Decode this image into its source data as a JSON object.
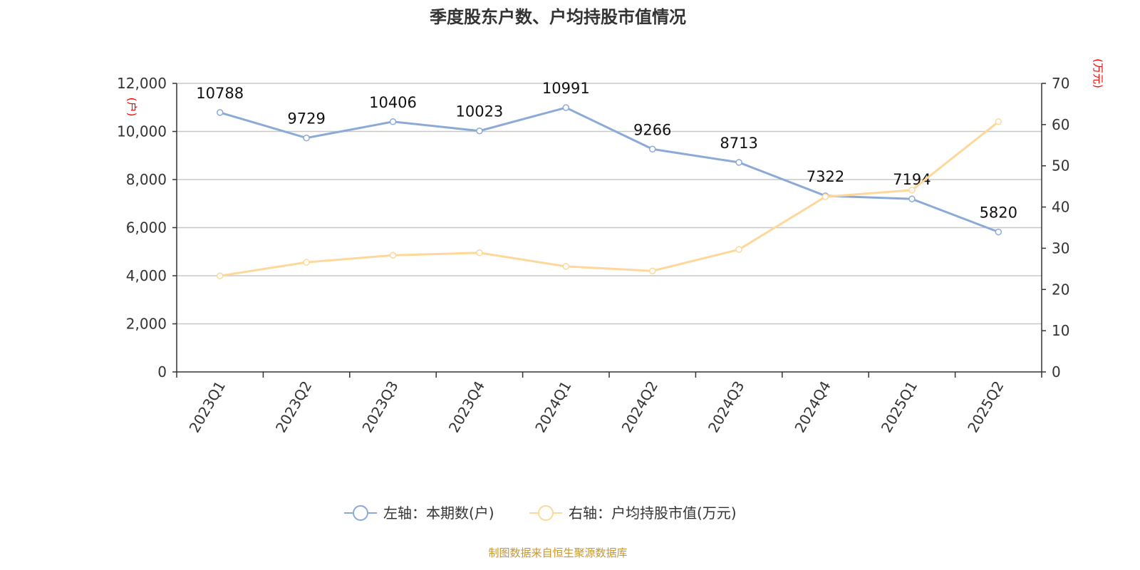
{
  "chart_data": {
    "type": "line",
    "title": "季度股东户数、户均持股市值情况",
    "categories": [
      "2023Q1",
      "2023Q2",
      "2023Q3",
      "2023Q4",
      "2024Q1",
      "2024Q2",
      "2024Q3",
      "2024Q4",
      "2025Q1",
      "2025Q2"
    ],
    "series": [
      {
        "name": "左轴：本期数(户)",
        "axis": "left",
        "color": "#8caad8",
        "show_labels": true,
        "values": [
          10788,
          9729,
          10406,
          10023,
          10991,
          9266,
          8713,
          7322,
          7194,
          5820
        ]
      },
      {
        "name": "右轴：户均持股市值(万元)",
        "axis": "right",
        "color": "#fdd89a",
        "show_labels": false,
        "values": [
          23.3,
          26.6,
          28.3,
          28.9,
          25.6,
          24.5,
          29.7,
          42.5,
          44.1,
          60.7
        ]
      }
    ],
    "left_axis": {
      "unit": "(户)",
      "ylim": [
        0,
        12000
      ],
      "ticks": [
        "0",
        "2,000",
        "4,000",
        "6,000",
        "8,000",
        "10,000",
        "12,000"
      ],
      "tick_values": [
        0,
        2000,
        4000,
        6000,
        8000,
        10000,
        12000
      ]
    },
    "right_axis": {
      "unit": "(万元)",
      "ylim": [
        0,
        70
      ],
      "ticks": [
        "0",
        "10",
        "20",
        "30",
        "40",
        "50",
        "60",
        "70"
      ],
      "tick_values": [
        0,
        10,
        20,
        30,
        40,
        50,
        60,
        70
      ]
    },
    "grid": true,
    "legend_position": "bottom",
    "source": "制图数据来自恒生聚源数据库"
  }
}
